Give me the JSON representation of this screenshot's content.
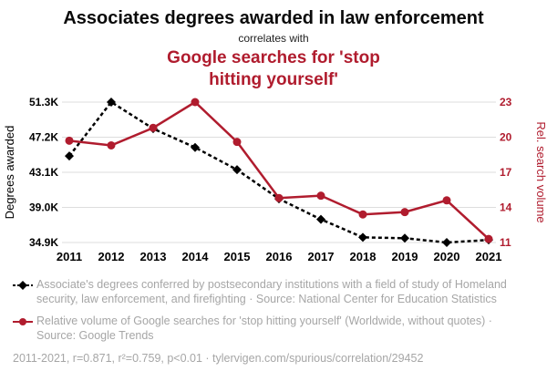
{
  "header": {
    "title": "Associates degrees awarded in law enforcement",
    "connector": "correlates with",
    "subtitle": "Google searches for 'stop hitting yourself'"
  },
  "colors": {
    "accent_red": "#b01c2e",
    "series_black": "#000000",
    "grid": "#dddddd",
    "muted_gray": "#a6a6a6"
  },
  "chart_data": {
    "type": "line",
    "x": [
      2011,
      2012,
      2013,
      2014,
      2015,
      2016,
      2017,
      2018,
      2019,
      2020,
      2021
    ],
    "series": [
      {
        "name": "Associate's degrees awarded (thousands)",
        "axis": "left",
        "color": "#000000",
        "style": "dashed-diamond",
        "values": [
          45.0,
          51.3,
          48.2,
          46.0,
          43.4,
          40.0,
          37.6,
          35.5,
          35.4,
          34.9,
          35.2
        ]
      },
      {
        "name": "Relative Google search volume",
        "axis": "right",
        "color": "#b01c2e",
        "style": "solid-circle",
        "values": [
          19.7,
          19.3,
          20.8,
          23.0,
          19.6,
          14.8,
          15.0,
          13.4,
          13.6,
          14.6,
          11.3
        ]
      }
    ],
    "left_axis": {
      "label": "Degrees awarded",
      "tick_labels": [
        "34.9K",
        "39.0K",
        "43.1K",
        "47.2K",
        "51.3K"
      ],
      "tick_values": [
        34.9,
        39.0,
        43.1,
        47.2,
        51.3
      ],
      "range": [
        34.9,
        51.3
      ]
    },
    "right_axis": {
      "label": "Rel. search volume",
      "tick_labels": [
        "11",
        "14",
        "17",
        "20",
        "23"
      ],
      "tick_values": [
        11,
        14,
        17,
        20,
        23
      ],
      "range": [
        11,
        23
      ]
    },
    "grid": true,
    "legend_position": "bottom"
  },
  "footer": {
    "legend1": "Associate's degrees conferred by postsecondary institutions with a field of study of Homeland security, law enforcement, and firefighting · Source: National Center for Education Statistics",
    "legend2": "Relative volume of Google searches for 'stop hitting yourself' (Worldwide, without quotes) · Source: Google Trends",
    "stats": "2011-2021, r=0.871, r²=0.759, p<0.01 · tylervigen.com/spurious/correlation/29452"
  }
}
